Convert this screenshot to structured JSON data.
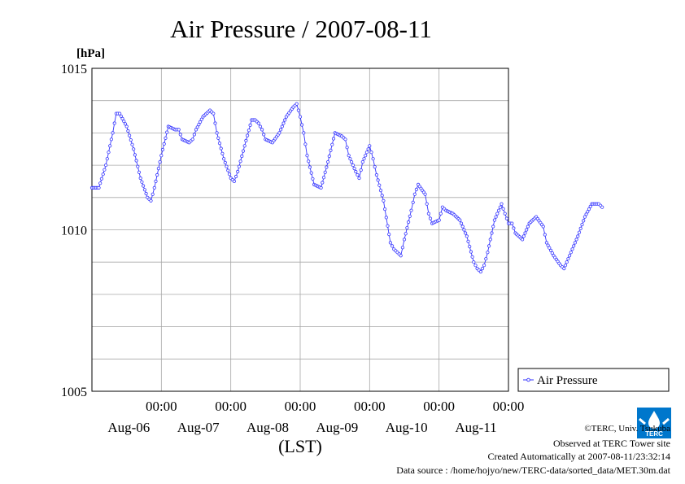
{
  "chart_data": {
    "type": "line",
    "title": "Air Pressure / 2007-08-11",
    "ylabel": "[hPa]",
    "xlabel": "(LST)",
    "ylim": [
      1005,
      1015
    ],
    "yticks": [
      "1015",
      "1010",
      "1005"
    ],
    "xticks": [
      {
        "time": "00:00",
        "date": "Aug-06"
      },
      {
        "time": "00:00",
        "date": "Aug-07"
      },
      {
        "time": "00:00",
        "date": "Aug-08"
      },
      {
        "time": "00:00",
        "date": "Aug-09"
      },
      {
        "time": "00:00",
        "date": "Aug-10"
      },
      {
        "time": "00:00",
        "date": "Aug-11"
      }
    ],
    "xlim_days": [
      -1,
      5
    ],
    "grid": true,
    "legend_position": "right",
    "series": [
      {
        "name": "Air Pressure",
        "color": "#3333ff",
        "points": [
          [
            -1.0,
            1011.3
          ],
          [
            -0.9,
            1011.3
          ],
          [
            -0.8,
            1012.0
          ],
          [
            -0.7,
            1013.0
          ],
          [
            -0.65,
            1013.6
          ],
          [
            -0.6,
            1013.6
          ],
          [
            -0.5,
            1013.2
          ],
          [
            -0.4,
            1012.5
          ],
          [
            -0.3,
            1011.6
          ],
          [
            -0.2,
            1011.0
          ],
          [
            -0.15,
            1010.9
          ],
          [
            -0.1,
            1011.3
          ],
          [
            0.0,
            1012.3
          ],
          [
            0.1,
            1013.2
          ],
          [
            0.2,
            1013.1
          ],
          [
            0.25,
            1013.1
          ],
          [
            0.3,
            1012.8
          ],
          [
            0.4,
            1012.7
          ],
          [
            0.45,
            1012.8
          ],
          [
            0.5,
            1013.1
          ],
          [
            0.6,
            1013.5
          ],
          [
            0.7,
            1013.7
          ],
          [
            0.75,
            1013.6
          ],
          [
            0.8,
            1013.0
          ],
          [
            0.9,
            1012.2
          ],
          [
            1.0,
            1011.6
          ],
          [
            1.05,
            1011.5
          ],
          [
            1.1,
            1011.8
          ],
          [
            1.2,
            1012.6
          ],
          [
            1.3,
            1013.4
          ],
          [
            1.35,
            1013.4
          ],
          [
            1.4,
            1013.3
          ],
          [
            1.45,
            1013.1
          ],
          [
            1.5,
            1012.8
          ],
          [
            1.6,
            1012.7
          ],
          [
            1.7,
            1013.0
          ],
          [
            1.8,
            1013.5
          ],
          [
            1.9,
            1013.8
          ],
          [
            1.95,
            1013.9
          ],
          [
            2.0,
            1013.5
          ],
          [
            2.05,
            1013.0
          ],
          [
            2.1,
            1012.3
          ],
          [
            2.2,
            1011.4
          ],
          [
            2.3,
            1011.3
          ],
          [
            2.4,
            1012.1
          ],
          [
            2.5,
            1013.0
          ],
          [
            2.6,
            1012.9
          ],
          [
            2.65,
            1012.8
          ],
          [
            2.7,
            1012.3
          ],
          [
            2.8,
            1011.8
          ],
          [
            2.85,
            1011.6
          ],
          [
            2.9,
            1012.1
          ],
          [
            3.0,
            1012.6
          ],
          [
            3.05,
            1012.2
          ],
          [
            3.1,
            1011.7
          ],
          [
            3.2,
            1010.9
          ],
          [
            3.3,
            1009.6
          ],
          [
            3.35,
            1009.4
          ],
          [
            3.4,
            1009.3
          ],
          [
            3.45,
            1009.2
          ],
          [
            3.5,
            1009.7
          ],
          [
            3.6,
            1010.6
          ],
          [
            3.65,
            1011.1
          ],
          [
            3.7,
            1011.4
          ],
          [
            3.8,
            1011.1
          ],
          [
            3.85,
            1010.5
          ],
          [
            3.9,
            1010.2
          ],
          [
            4.0,
            1010.3
          ],
          [
            4.05,
            1010.7
          ],
          [
            4.1,
            1010.6
          ],
          [
            4.2,
            1010.5
          ],
          [
            4.3,
            1010.3
          ],
          [
            4.4,
            1009.8
          ],
          [
            4.5,
            1009.0
          ],
          [
            4.55,
            1008.8
          ],
          [
            4.6,
            1008.7
          ],
          [
            4.65,
            1008.9
          ],
          [
            4.7,
            1009.3
          ],
          [
            4.8,
            1010.3
          ],
          [
            4.9,
            1010.8
          ],
          [
            4.95,
            1010.5
          ],
          [
            5.0,
            1010.2
          ],
          [
            5.05,
            1010.2
          ],
          [
            5.1,
            1009.9
          ],
          [
            5.2,
            1009.7
          ],
          [
            5.3,
            1010.2
          ],
          [
            5.4,
            1010.4
          ],
          [
            5.5,
            1010.1
          ],
          [
            5.55,
            1009.6
          ],
          [
            5.65,
            1009.2
          ],
          [
            5.75,
            1008.9
          ],
          [
            5.8,
            1008.8
          ],
          [
            5.9,
            1009.3
          ],
          [
            6.0,
            1009.8
          ],
          [
            6.1,
            1010.4
          ],
          [
            6.2,
            1010.8
          ],
          [
            6.3,
            1010.8
          ],
          [
            6.35,
            1010.7
          ]
        ]
      }
    ]
  },
  "footer": {
    "copyright": "©TERC, Univ. Tsukuba",
    "observed": "Observed at TERC Tower site",
    "created": "Created Automatically at 2007-08-11/23:32:14",
    "source": "Data source : /home/hojyo/new/TERC-data/sorted_data/MET.30m.dat"
  },
  "logo": {
    "text": "TERC",
    "color": "#0077cc"
  }
}
